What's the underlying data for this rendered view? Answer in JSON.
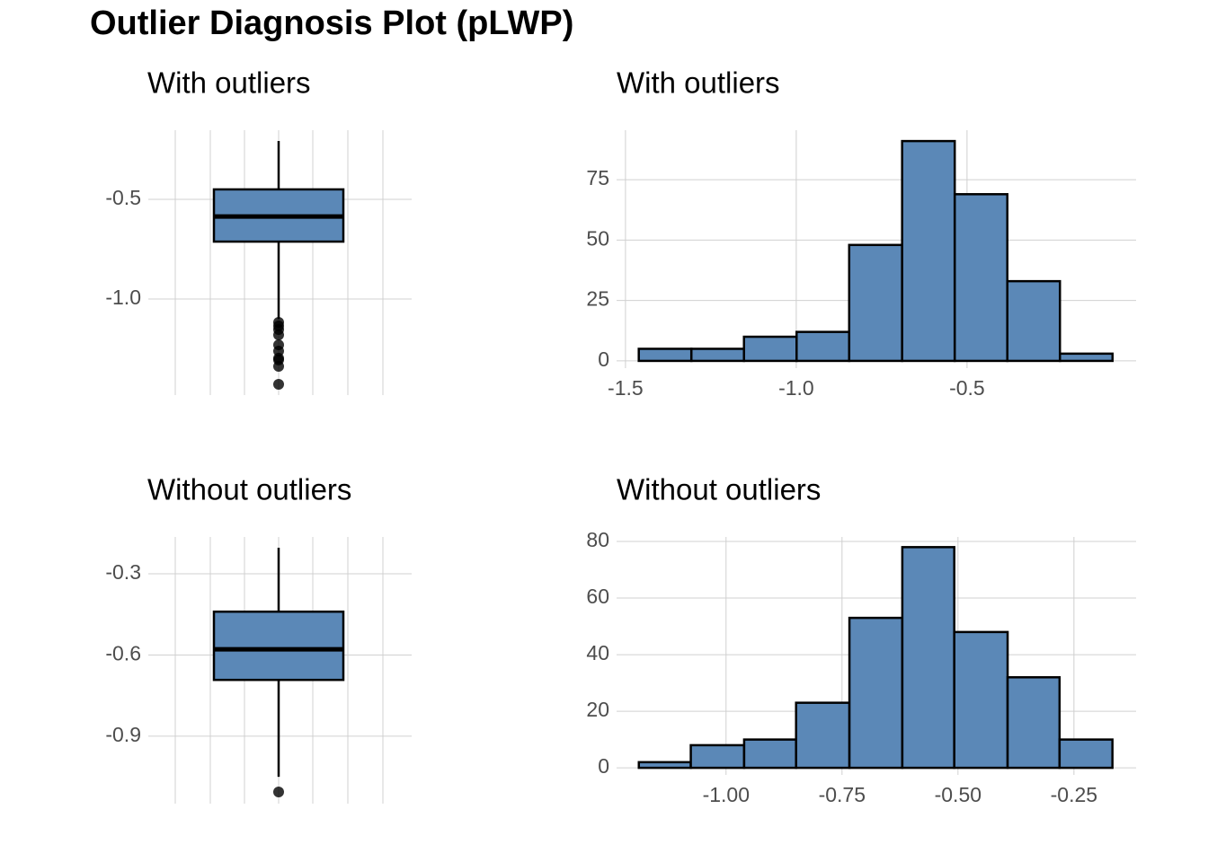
{
  "title": "Outlier Diagnosis Plot (pLWP)",
  "chart_data": [
    {
      "type": "box",
      "title": "With outliers",
      "color": "#5b88b7",
      "ylim": [
        -1.482,
        -0.153
      ],
      "yticks": [
        -0.5,
        {
          "value": -1,
          "label": "-1.0"
        }
      ],
      "grid": true,
      "q1": -0.712,
      "median": -0.586,
      "q3": -0.45,
      "whisker_low": -1.1,
      "whisker_high": -0.207,
      "outliers": [
        -1.117,
        -1.135,
        -1.153,
        -1.18,
        -1.23,
        -1.261,
        -1.297,
        -1.306,
        -1.338,
        -1.428
      ]
    },
    {
      "type": "histogram",
      "title": "With outliers",
      "color": "#5b88b7",
      "bins": [
        -1.461,
        -1.307,
        -1.153,
        -0.999,
        -0.845,
        -0.69,
        -0.536,
        -0.382,
        -0.228,
        -0.074
      ],
      "counts": [
        5,
        5,
        10,
        12,
        48,
        91,
        69,
        33,
        3
      ],
      "xlim": [
        -1.526,
        -0.005
      ],
      "xticks": [
        -1.5,
        {
          "value": -1,
          "label": "-1.0"
        },
        -0.5
      ],
      "ylim": [
        -3,
        95.5
      ],
      "yticks": [
        0,
        25,
        50,
        75
      ],
      "grid": true
    },
    {
      "type": "box",
      "title": "Without outliers",
      "color": "#5b88b7",
      "ylim": [
        -1.149,
        -0.164
      ],
      "yticks": [
        -0.3,
        -0.6,
        -0.9
      ],
      "grid": true,
      "q1": -0.692,
      "median": -0.579,
      "q3": -0.44,
      "whisker_low": -1.05,
      "whisker_high": -0.204,
      "outliers": [
        -1.106
      ]
    },
    {
      "type": "histogram",
      "title": "Without outliers",
      "color": "#5b88b7",
      "bins": [
        -1.188,
        -1.076,
        -0.961,
        -0.849,
        -0.734,
        -0.62,
        -0.508,
        -0.393,
        -0.281,
        -0.167
      ],
      "counts": [
        2,
        8,
        10,
        23,
        53,
        78,
        48,
        32,
        10
      ],
      "xlim": [
        -1.236,
        -0.116
      ],
      "xticks": [
        {
          "value": -1,
          "label": "-1.00"
        },
        -0.75,
        {
          "value": -0.5,
          "label": "-0.50"
        },
        -0.25
      ],
      "ylim": [
        -2.5,
        81.6
      ],
      "yticks": [
        0,
        20,
        40,
        60,
        80
      ],
      "grid": true
    }
  ]
}
